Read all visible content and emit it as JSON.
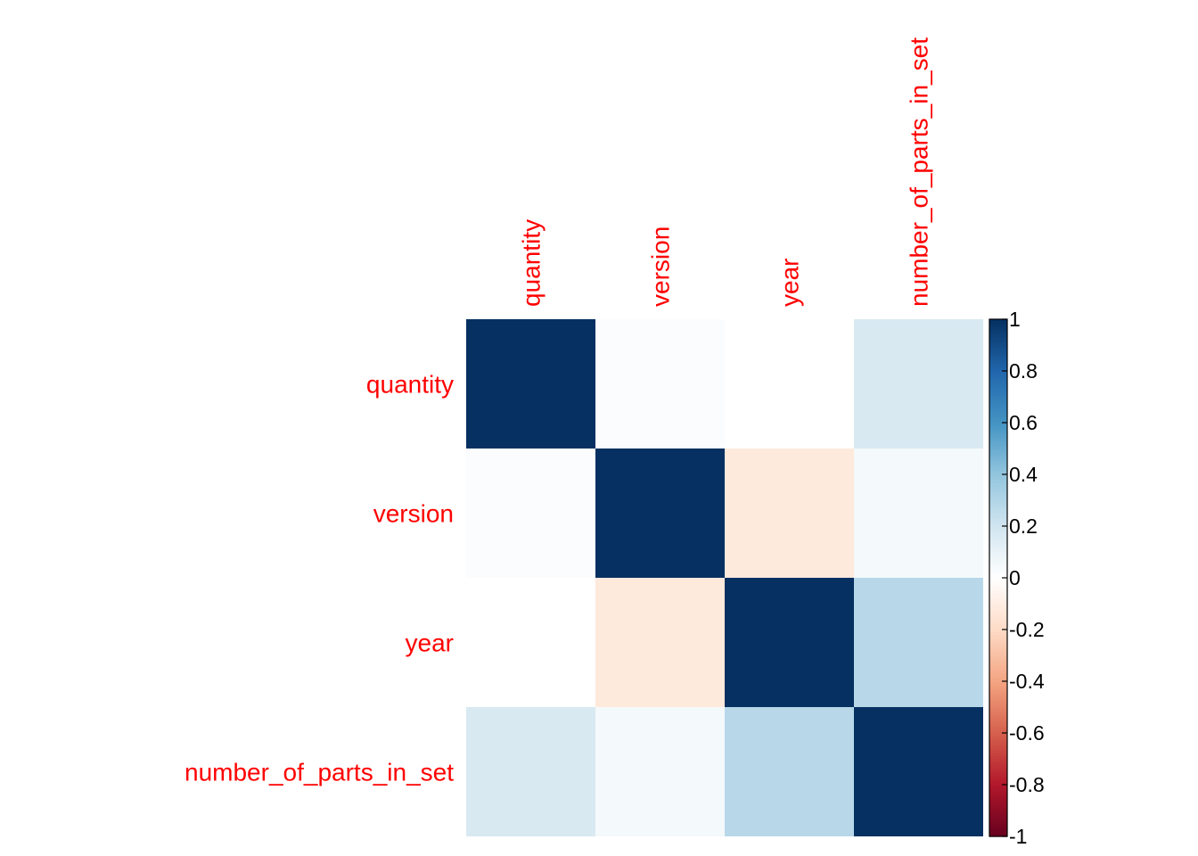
{
  "chart_data": {
    "type": "heatmap",
    "title": "",
    "row_labels": [
      "quantity",
      "version",
      "year",
      "number_of_parts_in_set"
    ],
    "col_labels": [
      "quantity",
      "version",
      "year",
      "number_of_parts_in_set"
    ],
    "values": [
      [
        1.0,
        0.02,
        0.0,
        0.17
      ],
      [
        0.02,
        1.0,
        -0.12,
        0.05
      ],
      [
        0.0,
        -0.12,
        1.0,
        0.28
      ],
      [
        0.17,
        0.05,
        0.28,
        1.0
      ]
    ],
    "color_range": [
      -1,
      1
    ],
    "colorbar_ticks": [
      "1",
      "0.8",
      "0.6",
      "0.4",
      "0.2",
      "0",
      "-0.2",
      "-0.4",
      "-0.6",
      "-0.8",
      "-1"
    ],
    "colorbar_tick_values": [
      1,
      0.8,
      0.6,
      0.4,
      0.2,
      0,
      -0.2,
      -0.4,
      -0.6,
      -0.8,
      -1
    ],
    "legend_position": "right",
    "label_color": "#ff0000",
    "palette": [
      "#67001F",
      "#B2182B",
      "#D6604D",
      "#F4A582",
      "#FDDBC7",
      "#FFFFFF",
      "#D1E5F0",
      "#92C5DE",
      "#4393C3",
      "#2166AC",
      "#053061"
    ]
  }
}
